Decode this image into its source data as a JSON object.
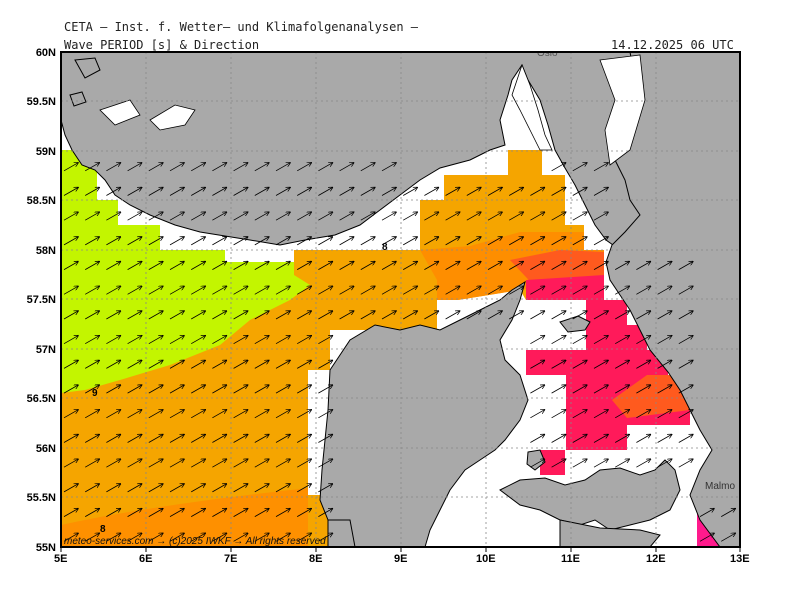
{
  "header": {
    "line1": "CETA — Inst. f. Wetter— und Klimafolgenanalysen —",
    "line2": "Wave PERIOD [s] & Direction",
    "timestamp": "14.12.2025 06 UTC"
  },
  "map": {
    "lon_range": [
      5,
      13
    ],
    "lat_range": [
      55,
      60
    ],
    "lon_ticks": [
      "5E",
      "6E",
      "7E",
      "8E",
      "9E",
      "10E",
      "11E",
      "12E",
      "13E"
    ],
    "lat_ticks": [
      "60N",
      "59.5N",
      "59N",
      "58.5N",
      "58N",
      "57.5N",
      "57N",
      "56.5N",
      "56N",
      "55.5N",
      "55N"
    ],
    "place_labels": {
      "oslo": "Oslo",
      "malmo": "Malmo"
    },
    "contour_labels": [
      "8",
      "9",
      "8"
    ],
    "credit": "meteo-services.com → (c)2025 IWKF → All rights reserved",
    "colors": {
      "land": "#a9a9a9",
      "sea_white": "#ffffff",
      "period_9_plus": "#c3f500",
      "period_7_8": "#f5a500",
      "period_8_9": "#ff8c00",
      "period_high": "#ff5a00",
      "period_short": "#ff1a5a",
      "period_vshort": "#ff1a8c"
    }
  }
}
